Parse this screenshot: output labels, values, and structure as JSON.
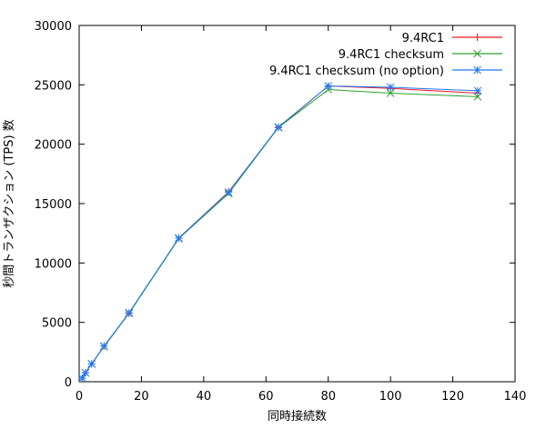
{
  "chart_data": {
    "type": "line",
    "title": "",
    "xlabel": "同時接続数",
    "ylabel": "秒間トランザクション (TPS) 数",
    "xlim": [
      0,
      140
    ],
    "ylim": [
      0,
      30000
    ],
    "x_ticks": [
      0,
      20,
      40,
      60,
      80,
      100,
      120,
      140
    ],
    "y_ticks": [
      0,
      5000,
      10000,
      15000,
      20000,
      25000,
      30000
    ],
    "grid": false,
    "legend_position": "top-right",
    "series": [
      {
        "name": "9.4RC1",
        "color": "#e41a1c",
        "marker": "plus",
        "x": [
          1,
          2,
          4,
          8,
          16,
          32,
          48,
          64,
          80,
          100,
          128
        ],
        "y": [
          300,
          750,
          1500,
          3000,
          5750,
          12100,
          16000,
          21400,
          24900,
          24700,
          24300
        ]
      },
      {
        "name": "9.4RC1 checksum",
        "color": "#2ca02c",
        "marker": "x",
        "x": [
          1,
          2,
          4,
          8,
          16,
          32,
          48,
          64,
          80,
          100,
          128
        ],
        "y": [
          300,
          750,
          1500,
          2950,
          5750,
          12050,
          15850,
          21400,
          24600,
          24300,
          24000
        ]
      },
      {
        "name": "9.4RC1 checksum (no option)",
        "color": "#1f77ff",
        "marker": "star",
        "x": [
          1,
          2,
          4,
          8,
          16,
          32,
          48,
          64,
          80,
          100,
          128
        ],
        "y": [
          300,
          750,
          1500,
          3000,
          5800,
          12100,
          15950,
          21450,
          24900,
          24800,
          24500
        ]
      }
    ]
  }
}
